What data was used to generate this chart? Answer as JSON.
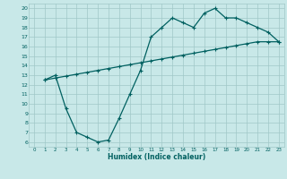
{
  "bg_color": "#c8e8e8",
  "grid_color": "#a0c8c8",
  "line_color": "#006060",
  "marker": "+",
  "markersize": 3,
  "linewidth": 0.9,
  "markeredgewidth": 0.8,
  "xlabel": "Humidex (Indice chaleur)",
  "xlim": [
    -0.5,
    23.5
  ],
  "ylim": [
    5.5,
    20.5
  ],
  "xticks": [
    0,
    1,
    2,
    3,
    4,
    5,
    6,
    7,
    8,
    9,
    10,
    11,
    12,
    13,
    14,
    15,
    16,
    17,
    18,
    19,
    20,
    21,
    22,
    23
  ],
  "yticks": [
    6,
    7,
    8,
    9,
    10,
    11,
    12,
    13,
    14,
    15,
    16,
    17,
    18,
    19,
    20
  ],
  "line1_x": [
    1,
    2,
    3,
    4,
    5,
    6,
    7,
    8,
    9,
    10,
    11,
    12,
    13,
    14,
    15,
    16,
    17,
    18,
    19,
    20,
    21,
    22,
    23
  ],
  "line1_y": [
    12.5,
    13.0,
    9.5,
    7.0,
    6.5,
    6.0,
    6.2,
    8.5,
    11.0,
    13.5,
    17.0,
    18.0,
    19.0,
    18.5,
    18.0,
    19.5,
    20.0,
    19.0,
    19.0,
    18.5,
    18.0,
    17.5,
    16.5
  ],
  "line2_x": [
    1,
    2,
    3,
    4,
    5,
    6,
    7,
    8,
    9,
    10,
    11,
    12,
    13,
    14,
    15,
    16,
    17,
    18,
    19,
    20,
    21,
    22,
    23
  ],
  "line2_y": [
    12.5,
    12.7,
    12.9,
    13.1,
    13.3,
    13.5,
    13.7,
    13.9,
    14.1,
    14.3,
    14.5,
    14.7,
    14.9,
    15.1,
    15.3,
    15.5,
    15.7,
    15.9,
    16.1,
    16.3,
    16.5,
    16.5,
    16.5
  ]
}
